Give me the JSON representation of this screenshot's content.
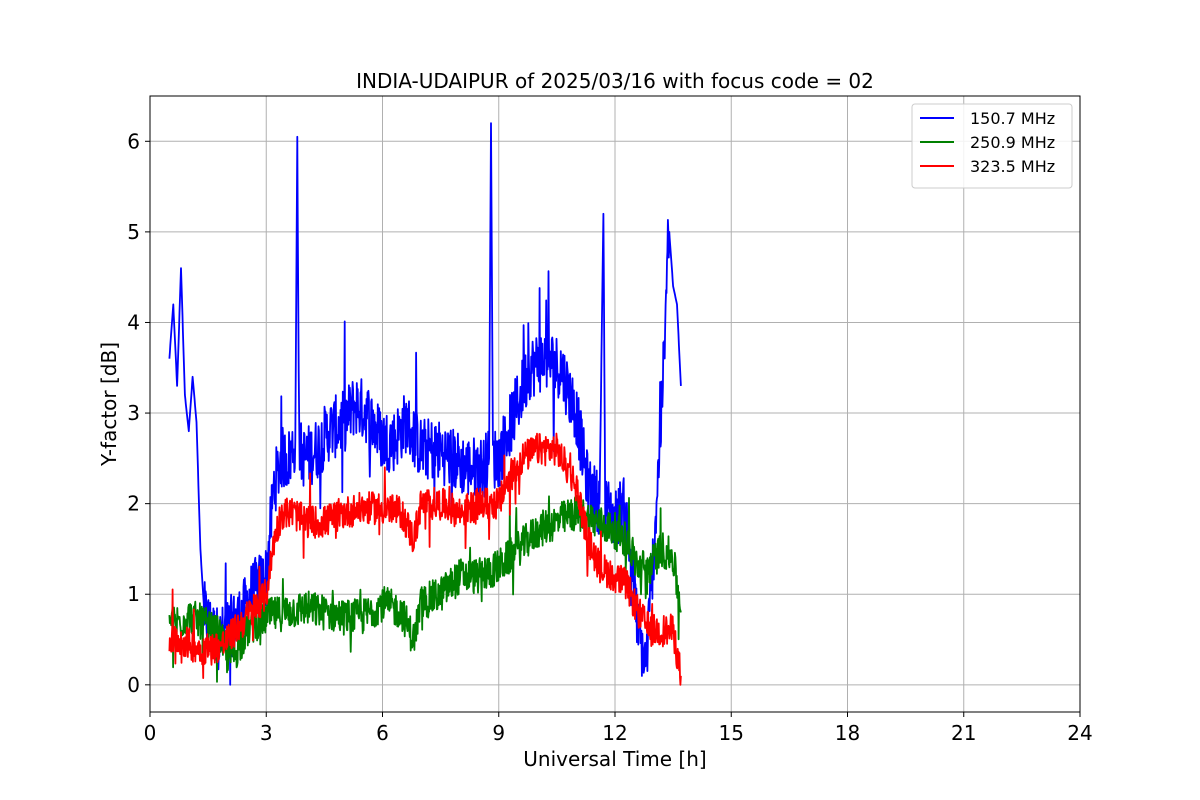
{
  "chart_data": {
    "type": "line",
    "title": "INDIA-UDAIPUR of 2025/03/16 with focus code = 02",
    "xlabel": "Universal Time [h]",
    "ylabel": "Y-factor [dB]",
    "xlim": [
      0,
      24
    ],
    "ylim": [
      -0.3,
      6.5
    ],
    "xticks": [
      0,
      3,
      6,
      9,
      12,
      15,
      18,
      21,
      24
    ],
    "yticks": [
      0,
      1,
      2,
      3,
      4,
      5,
      6
    ],
    "grid": true,
    "legend_position": "top-right",
    "series": [
      {
        "name": "150.7 MHz",
        "color": "#0000ff",
        "noise": 0.35,
        "points": [
          [
            0.5,
            3.6
          ],
          [
            0.6,
            4.2
          ],
          [
            0.7,
            3.3
          ],
          [
            0.8,
            4.6
          ],
          [
            0.9,
            3.2
          ],
          [
            1.0,
            2.8
          ],
          [
            1.1,
            3.4
          ],
          [
            1.2,
            2.9
          ],
          [
            1.3,
            1.5
          ],
          [
            1.4,
            0.8
          ],
          [
            1.6,
            0.6
          ],
          [
            1.8,
            0.5
          ],
          [
            2.0,
            0.6
          ],
          [
            2.2,
            0.7
          ],
          [
            2.4,
            0.8
          ],
          [
            2.6,
            1.0
          ],
          [
            2.8,
            1.1
          ],
          [
            3.0,
            1.2
          ],
          [
            3.2,
            2.2
          ],
          [
            3.4,
            2.5
          ],
          [
            3.6,
            2.5
          ],
          [
            3.75,
            2.7
          ],
          [
            3.8,
            6.05
          ],
          [
            3.85,
            2.6
          ],
          [
            4.0,
            2.5
          ],
          [
            4.3,
            2.6
          ],
          [
            4.6,
            2.8
          ],
          [
            5.0,
            2.9
          ],
          [
            5.3,
            3.1
          ],
          [
            5.6,
            3.0
          ],
          [
            6.0,
            2.7
          ],
          [
            6.3,
            2.7
          ],
          [
            6.6,
            2.9
          ],
          [
            7.0,
            2.6
          ],
          [
            7.4,
            2.6
          ],
          [
            7.8,
            2.5
          ],
          [
            8.2,
            2.4
          ],
          [
            8.6,
            2.4
          ],
          [
            8.75,
            2.5
          ],
          [
            8.8,
            6.2
          ],
          [
            8.85,
            2.5
          ],
          [
            9.0,
            2.5
          ],
          [
            9.4,
            3.0
          ],
          [
            9.8,
            3.5
          ],
          [
            10.2,
            3.6
          ],
          [
            10.6,
            3.5
          ],
          [
            11.0,
            3.0
          ],
          [
            11.3,
            2.2
          ],
          [
            11.6,
            2.0
          ],
          [
            11.7,
            5.2
          ],
          [
            11.75,
            2.0
          ],
          [
            12.0,
            1.8
          ],
          [
            12.2,
            2.0
          ],
          [
            12.4,
            1.5
          ],
          [
            12.6,
            0.6
          ],
          [
            12.8,
            0.2
          ],
          [
            13.0,
            1.5
          ],
          [
            13.2,
            3.0
          ],
          [
            13.4,
            5.0
          ],
          [
            13.5,
            4.4
          ],
          [
            13.6,
            4.2
          ],
          [
            13.7,
            3.3
          ]
        ]
      },
      {
        "name": "250.9 MHz",
        "color": "#008000",
        "noise": 0.2,
        "points": [
          [
            0.5,
            0.7
          ],
          [
            0.8,
            0.7
          ],
          [
            1.0,
            0.75
          ],
          [
            1.3,
            0.7
          ],
          [
            1.6,
            0.6
          ],
          [
            1.8,
            0.55
          ],
          [
            2.0,
            0.3
          ],
          [
            2.2,
            0.35
          ],
          [
            2.5,
            0.6
          ],
          [
            2.8,
            0.7
          ],
          [
            3.0,
            0.75
          ],
          [
            3.5,
            0.8
          ],
          [
            4.0,
            0.85
          ],
          [
            4.5,
            0.8
          ],
          [
            5.0,
            0.75
          ],
          [
            5.5,
            0.75
          ],
          [
            6.0,
            0.9
          ],
          [
            6.5,
            0.8
          ],
          [
            6.8,
            0.5
          ],
          [
            7.0,
            0.9
          ],
          [
            7.5,
            1.0
          ],
          [
            8.0,
            1.2
          ],
          [
            8.5,
            1.2
          ],
          [
            9.0,
            1.3
          ],
          [
            9.5,
            1.5
          ],
          [
            10.0,
            1.7
          ],
          [
            10.5,
            1.8
          ],
          [
            11.0,
            1.9
          ],
          [
            11.5,
            1.8
          ],
          [
            12.0,
            1.7
          ],
          [
            12.3,
            1.6
          ],
          [
            12.6,
            1.3
          ],
          [
            12.9,
            1.3
          ],
          [
            13.2,
            1.5
          ],
          [
            13.5,
            1.4
          ],
          [
            13.7,
            0.8
          ]
        ]
      },
      {
        "name": "323.5 MHz",
        "color": "#ff0000",
        "noise": 0.18,
        "points": [
          [
            0.5,
            0.5
          ],
          [
            0.8,
            0.5
          ],
          [
            1.0,
            0.45
          ],
          [
            1.3,
            0.4
          ],
          [
            1.6,
            0.4
          ],
          [
            1.9,
            0.45
          ],
          [
            2.2,
            0.6
          ],
          [
            2.5,
            0.75
          ],
          [
            2.8,
            0.9
          ],
          [
            3.0,
            1.0
          ],
          [
            3.2,
            1.6
          ],
          [
            3.4,
            1.9
          ],
          [
            3.7,
            1.9
          ],
          [
            4.0,
            1.8
          ],
          [
            4.5,
            1.8
          ],
          [
            5.0,
            1.9
          ],
          [
            5.5,
            1.95
          ],
          [
            6.0,
            1.95
          ],
          [
            6.5,
            1.9
          ],
          [
            6.8,
            1.6
          ],
          [
            7.0,
            2.0
          ],
          [
            7.5,
            2.0
          ],
          [
            8.0,
            1.9
          ],
          [
            8.5,
            2.0
          ],
          [
            9.0,
            2.0
          ],
          [
            9.3,
            2.3
          ],
          [
            9.6,
            2.5
          ],
          [
            10.0,
            2.6
          ],
          [
            10.5,
            2.6
          ],
          [
            11.0,
            2.2
          ],
          [
            11.3,
            1.6
          ],
          [
            11.6,
            1.3
          ],
          [
            12.0,
            1.2
          ],
          [
            12.3,
            1.1
          ],
          [
            12.6,
            0.8
          ],
          [
            12.9,
            0.6
          ],
          [
            13.2,
            0.6
          ],
          [
            13.5,
            0.6
          ],
          [
            13.7,
            0.1
          ]
        ]
      }
    ]
  }
}
